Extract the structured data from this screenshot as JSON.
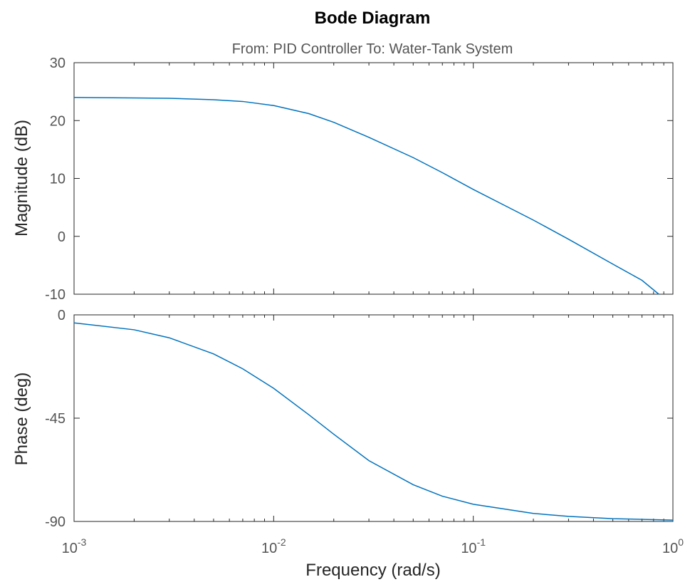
{
  "chart_data": {
    "type": "line",
    "title": "Bode Diagram",
    "subtitle": "From: PID Controller  To: Water-Tank System",
    "xlabel": "Frequency  (rad/s)",
    "xscale": "log",
    "xlim": [
      0.001,
      1
    ],
    "x_ticks": [
      {
        "base": "10",
        "exp": "-3"
      },
      {
        "base": "10",
        "exp": "-2"
      },
      {
        "base": "10",
        "exp": "-1"
      },
      {
        "base": "10",
        "exp": "0"
      }
    ],
    "line_color": "#0072BD",
    "grid": false,
    "panels": [
      {
        "name": "magnitude",
        "ylabel": "Magnitude (dB)",
        "ylim": [
          -10,
          30
        ],
        "y_ticks": [
          "30",
          "20",
          "10",
          "0",
          "-10"
        ],
        "y_tick_values": [
          30,
          20,
          10,
          0,
          -10
        ],
        "series": [
          {
            "x": [
              0.001,
              0.002,
              0.003,
              0.005,
              0.007,
              0.01,
              0.015,
              0.02,
              0.03,
              0.05,
              0.07,
              0.1,
              0.15,
              0.2,
              0.3,
              0.5,
              0.7,
              0.85
            ],
            "y": [
              24.0,
              23.9,
              23.85,
              23.6,
              23.3,
              22.6,
              21.2,
              19.7,
              17.1,
              13.6,
              11.0,
              8.1,
              5.0,
              2.8,
              -0.5,
              -4.8,
              -7.6,
              -10.0
            ]
          }
        ]
      },
      {
        "name": "phase",
        "ylabel": "Phase (deg)",
        "ylim": [
          -90,
          0
        ],
        "y_ticks": [
          "0",
          "-45",
          "-90"
        ],
        "y_tick_values": [
          0,
          -45,
          -90
        ],
        "series": [
          {
            "x": [
              0.001,
              0.002,
              0.003,
              0.005,
              0.007,
              0.01,
              0.015,
              0.02,
              0.03,
              0.05,
              0.07,
              0.1,
              0.2,
              0.3,
              0.5,
              1
            ],
            "y": [
              -3.5,
              -6.5,
              -10.0,
              -17.0,
              -23.5,
              -32.0,
              -43.5,
              -52.0,
              -63.5,
              -74.0,
              -79.0,
              -82.5,
              -86.5,
              -87.8,
              -88.8,
              -89.4
            ]
          }
        ]
      }
    ]
  }
}
